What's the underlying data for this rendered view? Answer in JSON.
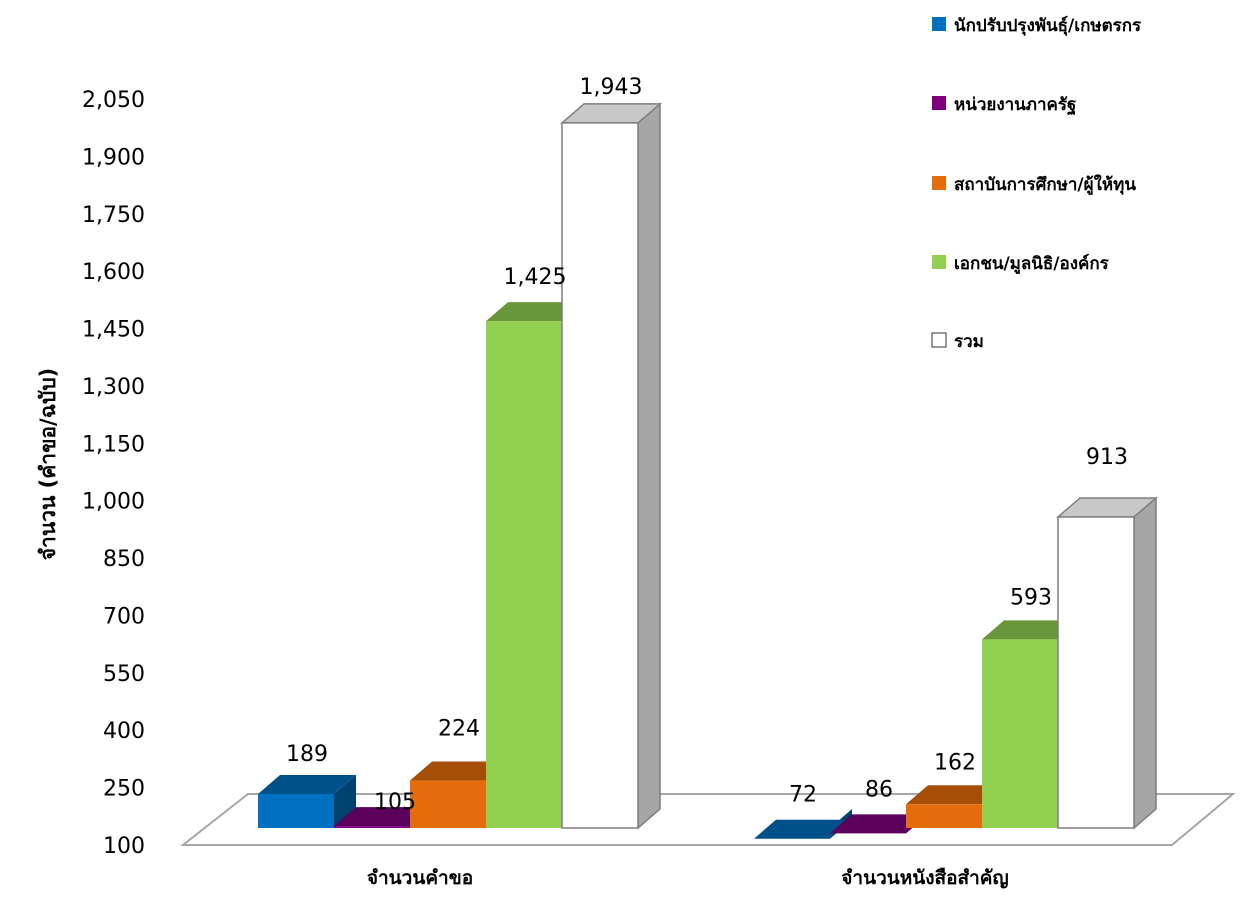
{
  "chart_data": {
    "type": "bar",
    "title": "",
    "xlabel": "",
    "ylabel": "จำนวน (คำขอ/ฉบับ)",
    "ylim": [
      100,
      2050
    ],
    "yticks": [
      100,
      250,
      400,
      550,
      700,
      850,
      1000,
      1150,
      1300,
      1450,
      1600,
      1750,
      1900,
      2050
    ],
    "ytick_labels": [
      "100",
      "250",
      "400",
      "550",
      "700",
      "850",
      "1,000",
      "1,150",
      "1,300",
      "1,450",
      "1,600",
      "1,750",
      "1,900",
      "2,050"
    ],
    "categories": [
      "จำนวนคำขอ",
      "จำนวนหนังสือสำคัญ"
    ],
    "legend_position": "right",
    "series": [
      {
        "name": "นักปรับปรุงพันธุ์/เกษตรกร",
        "color": "#0070C0",
        "values": [
          189,
          72
        ],
        "labels": [
          "189",
          "72"
        ]
      },
      {
        "name": "หน่วยงานภาครัฐ",
        "color": "#7F007F",
        "values": [
          105,
          86
        ],
        "labels": [
          "105",
          "86"
        ]
      },
      {
        "name": "สถาบันการศึกษา/ผู้ให้ทุน",
        "color": "#E46C0A",
        "values": [
          224,
          162
        ],
        "labels": [
          "224",
          "162"
        ]
      },
      {
        "name": "เอกชน/มูลนิธิ/องค์กร",
        "color": "#92D050",
        "values": [
          1425,
          593
        ],
        "labels": [
          "1,425",
          "593"
        ]
      },
      {
        "name": "รวม",
        "color": "#FFFFFF",
        "values": [
          1943,
          913
        ],
        "labels": [
          "1,943",
          "913"
        ]
      }
    ]
  }
}
